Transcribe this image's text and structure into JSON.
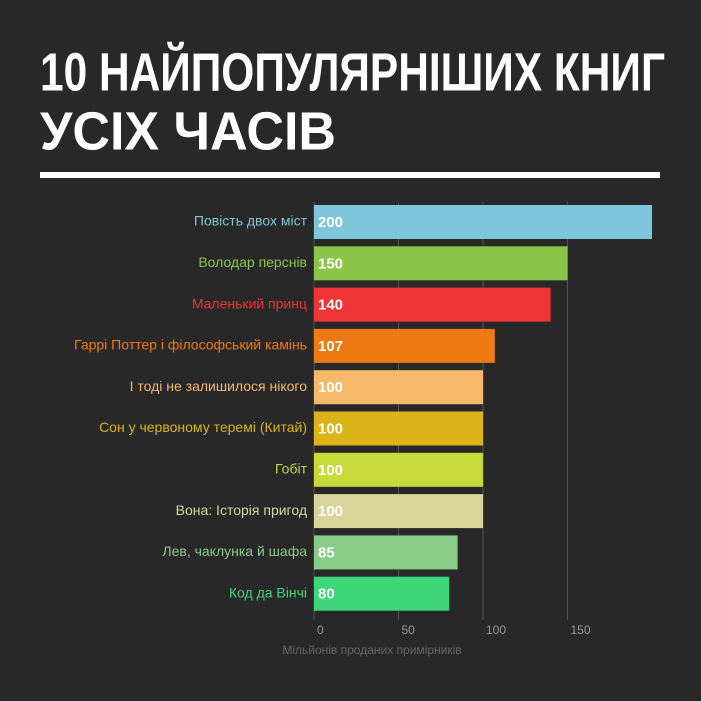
{
  "chart_data": {
    "type": "hbar",
    "title": [
      "10 НАЙПОПУЛЯРНІШИХ КНИГ",
      "УСІХ ЧАСІВ"
    ],
    "categories": [
      "Повість двох міст",
      "Володар перснів",
      "Маленький принц",
      "Гаррі Поттер і філософський камінь",
      "І тоді не залишилося нікого",
      "Сон у червоному теремі (Китай)",
      "Гобіт",
      "Вона: Історія пригод",
      "Лев, чаклунка й шафа",
      "Код да Вінчі"
    ],
    "values": [
      200,
      150,
      140,
      107,
      100,
      100,
      100,
      100,
      85,
      80
    ],
    "colors": [
      "#7ec6da",
      "#8bc64a",
      "#ee3535",
      "#ef7a14",
      "#f6b86a",
      "#dcb318",
      "#c6da3a",
      "#d9d49b",
      "#89cb89",
      "#3dd77a"
    ],
    "xlim": [
      0,
      200
    ],
    "xticks": [
      0,
      50,
      100,
      150
    ],
    "grid": true,
    "xlabel": "Мільйонів проданих примірників"
  }
}
